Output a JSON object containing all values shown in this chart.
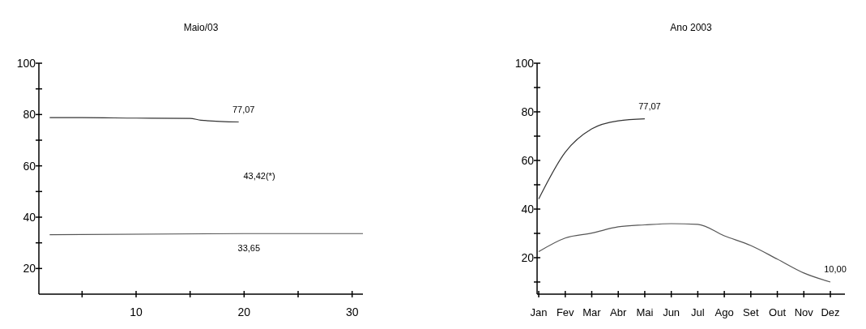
{
  "chart_data": [
    {
      "type": "line",
      "title": "Maio/03",
      "xlim": [
        1,
        31
      ],
      "xticks": [
        {
          "value": 5,
          "label": null
        },
        10,
        {
          "value": 15,
          "label": null
        },
        20,
        {
          "value": 25,
          "label": null
        },
        30
      ],
      "ylim": [
        10,
        100
      ],
      "yticks": [
        20,
        {
          "value": 30,
          "label": null
        },
        40,
        {
          "value": 50,
          "label": null
        },
        60,
        {
          "value": 70,
          "label": null
        },
        80,
        {
          "value": 90,
          "label": null
        },
        100
      ],
      "grid": false,
      "marker": "none",
      "series": [
        {
          "color": "#333333",
          "x": [
            2,
            5,
            10,
            15,
            16,
            19.5
          ],
          "values": [
            78.8,
            78.8,
            78.6,
            78.5,
            77.8,
            77.1
          ]
        },
        {
          "color": "#555555",
          "x": [
            2,
            20,
            31
          ],
          "values": [
            33.2,
            33.6,
            33.6
          ]
        }
      ],
      "annotations": [
        {
          "text": "77,07",
          "x": 19.5,
          "y": 77.1
        },
        "43,42(*)",
        {
          "text": "33,65",
          "x": 20,
          "y": 33.6
        }
      ]
    },
    {
      "type": "line",
      "title": "Ano 2003",
      "categories": [
        "Jan",
        "Fev",
        "Mar",
        "Abr",
        "Mai",
        "Jun",
        "Jul",
        "Ago",
        "Set",
        "Out",
        "Nov",
        "Dez"
      ],
      "ylim": [
        5,
        100
      ],
      "yticks": [
        {
          "value": 10,
          "label": null
        },
        20,
        {
          "value": 30,
          "label": null
        },
        40,
        {
          "value": 50,
          "label": null
        },
        60,
        {
          "value": 70,
          "label": null
        },
        80,
        {
          "value": 90,
          "label": null
        },
        100
      ],
      "grid": false,
      "marker": "none",
      "series": [
        {
          "color": "#333333",
          "values": [
            44.2,
            63.4,
            73,
            76.3,
            77.1,
            null,
            null,
            null,
            null,
            null,
            null,
            null
          ]
        },
        {
          "color": "#555555",
          "values": [
            22.5,
            28.1,
            30.1,
            32.7,
            33.5,
            34,
            33.7,
            29,
            25,
            19.4,
            13.7,
            10
          ]
        }
      ],
      "annotations": [
        {
          "text": "77,07",
          "x": "Mai",
          "y": 77.1
        },
        {
          "text": "10,00",
          "x": "Dez",
          "y": 10
        }
      ]
    }
  ]
}
